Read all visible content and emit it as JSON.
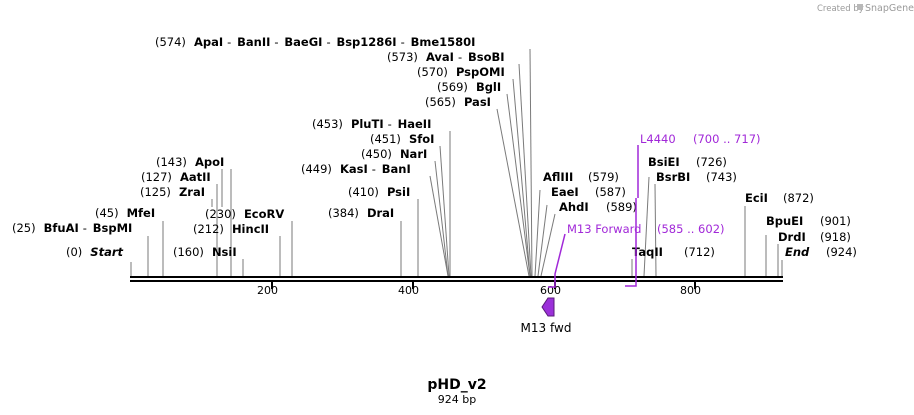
{
  "branding": {
    "created_by": "Created by",
    "app": "SnapGene"
  },
  "title": "pHD_v2",
  "length_label": "924 bp",
  "ruler_ticks": [
    "200",
    "400",
    "600",
    "800"
  ],
  "stacks": [
    [
      {
        "pos": "(574)",
        "name": "ApaI"
      },
      {
        "pos": "",
        "name": "BanII"
      },
      {
        "pos": "",
        "name": "BaeGI"
      },
      {
        "pos": "",
        "name": "Bsp1286I"
      },
      {
        "pos": "",
        "name": "Bme1580I"
      }
    ],
    [
      {
        "pos": "(573)",
        "name": "AvaI"
      },
      {
        "pos": "",
        "name": "BsoBI"
      }
    ],
    [
      {
        "pos": "(570)",
        "name": "PspOMI"
      }
    ],
    [
      {
        "pos": "(569)",
        "name": "BglI"
      }
    ],
    [
      {
        "pos": "(565)",
        "name": "PasI"
      }
    ],
    [
      {
        "pos": "(453)",
        "name": "PluTI"
      },
      {
        "pos": "",
        "name": "HaeII"
      }
    ],
    [
      {
        "pos": "(451)",
        "name": "SfoI"
      }
    ],
    [
      {
        "pos": "(450)",
        "name": "NarI"
      }
    ],
    [
      {
        "pos": "(449)",
        "name": "KasI"
      },
      {
        "pos": "",
        "name": "BanI"
      }
    ],
    [
      {
        "pos": "(410)",
        "name": "PsiI"
      }
    ],
    [
      {
        "pos": "(384)",
        "name": "DraI"
      }
    ],
    [
      {
        "pos": "(143)",
        "name": "ApoI"
      }
    ],
    [
      {
        "pos": "(127)",
        "name": "AatII"
      }
    ],
    [
      {
        "pos": "(125)",
        "name": "ZraI"
      }
    ],
    [
      {
        "pos": "(45)",
        "name": "MfeI"
      }
    ],
    [
      {
        "pos": "(25)",
        "name": "BfuAI"
      },
      {
        "pos": "",
        "name": "BspMI"
      }
    ],
    [
      {
        "pos": "(0)",
        "name": "Start"
      }
    ],
    [
      {
        "pos": "(160)",
        "name": "NsiI"
      }
    ],
    [
      {
        "pos": "(212)",
        "name": "HincII"
      }
    ],
    [
      {
        "pos": "(230)",
        "name": "EcoRV"
      }
    ],
    [
      {
        "pos": "(579)",
        "name": "AflIII"
      }
    ],
    [
      {
        "pos": "(587)",
        "name": "EaeI"
      }
    ],
    [
      {
        "pos": "(589)",
        "name": "AhdI"
      }
    ],
    [
      {
        "pos": "(726)",
        "name": "BsiEI"
      }
    ],
    [
      {
        "pos": "(743)",
        "name": "BsrBI"
      }
    ],
    [
      {
        "pos": "(712)",
        "name": "TaqII"
      }
    ],
    [
      {
        "pos": "(872)",
        "name": "EciI"
      }
    ],
    [
      {
        "pos": "(901)",
        "name": "BpuEI"
      }
    ],
    [
      {
        "pos": "(918)",
        "name": "DrdI"
      }
    ],
    [
      {
        "pos": "(924)",
        "name": "End"
      }
    ]
  ],
  "primers": [
    {
      "name": "L4440",
      "range": "(700 .. 717)"
    },
    {
      "name": "M13 Forward",
      "range": "(585 .. 602)"
    }
  ],
  "feature": {
    "name": "M13 fwd"
  },
  "colors": {
    "primer": "#a128d8",
    "backbone": "#000000",
    "leader": "#7a7a7a"
  }
}
